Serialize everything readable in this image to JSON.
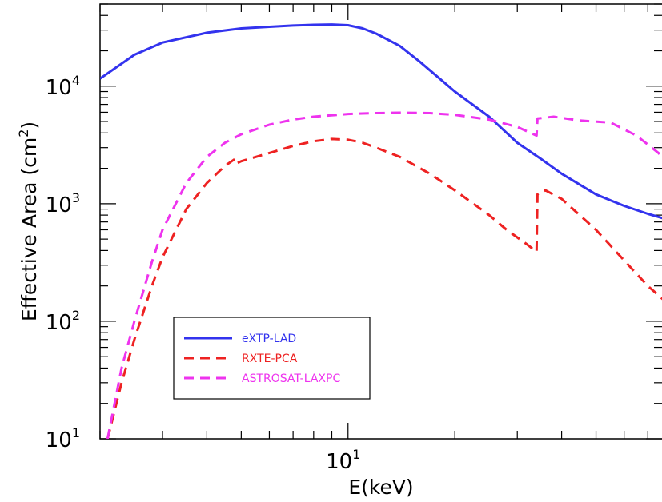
{
  "chart_data": {
    "type": "line",
    "title": "",
    "xlabel": "E(keV)",
    "ylabel_main": "Effective Area (cm",
    "ylabel_sup": "2",
    "ylabel_close": ")",
    "x_scale": "log",
    "y_scale": "log",
    "xlim": [
      2,
      80
    ],
    "ylim": [
      10,
      50000
    ],
    "x_ticks": [
      {
        "base": "10",
        "exp": "1",
        "value": 10
      }
    ],
    "y_ticks": [
      {
        "base": "10",
        "exp": "1",
        "value": 10
      },
      {
        "base": "10",
        "exp": "2",
        "value": 100
      },
      {
        "base": "10",
        "exp": "3",
        "value": 1000
      },
      {
        "base": "10",
        "exp": "4",
        "value": 10000
      }
    ],
    "grid": false,
    "legend_position": "lower-left",
    "series": [
      {
        "name": "eXTP-LAD",
        "color": "#3333ee",
        "style": "solid",
        "points": [
          [
            2,
            11600
          ],
          [
            2.5,
            18500
          ],
          [
            3,
            23500
          ],
          [
            4,
            28500
          ],
          [
            5,
            31000
          ],
          [
            6,
            32000
          ],
          [
            7,
            32800
          ],
          [
            8,
            33300
          ],
          [
            9,
            33500
          ],
          [
            10,
            33000
          ],
          [
            11,
            31000
          ],
          [
            12,
            28000
          ],
          [
            14,
            22000
          ],
          [
            16,
            16000
          ],
          [
            20,
            9000
          ],
          [
            25,
            5500
          ],
          [
            30,
            3300
          ],
          [
            35,
            2400
          ],
          [
            40,
            1800
          ],
          [
            50,
            1200
          ],
          [
            60,
            960
          ],
          [
            70,
            820
          ],
          [
            80,
            730
          ]
        ]
      },
      {
        "name": "RXTE-PCA",
        "color": "#ee2222",
        "style": "dashed",
        "points": [
          [
            2.1,
            10
          ],
          [
            2.3,
            30
          ],
          [
            2.5,
            70
          ],
          [
            2.8,
            200
          ],
          [
            3,
            350
          ],
          [
            3.5,
            900
          ],
          [
            4,
            1500
          ],
          [
            4.5,
            2100
          ],
          [
            4.8,
            2400
          ],
          [
            4.85,
            2200
          ],
          [
            5,
            2300
          ],
          [
            6,
            2700
          ],
          [
            7,
            3100
          ],
          [
            8,
            3400
          ],
          [
            9,
            3550
          ],
          [
            10,
            3500
          ],
          [
            11,
            3300
          ],
          [
            12,
            3000
          ],
          [
            14,
            2500
          ],
          [
            17,
            1800
          ],
          [
            20,
            1300
          ],
          [
            25,
            800
          ],
          [
            28,
            600
          ],
          [
            32,
            450
          ],
          [
            34,
            390
          ],
          [
            34.2,
            1200
          ],
          [
            36,
            1300
          ],
          [
            40,
            1100
          ],
          [
            50,
            600
          ],
          [
            60,
            330
          ],
          [
            70,
            200
          ],
          [
            80,
            140
          ]
        ]
      },
      {
        "name": "ASTROSAT-LAXPC",
        "color": "#ee33ee",
        "style": "dashed",
        "points": [
          [
            2.1,
            10
          ],
          [
            2.3,
            40
          ],
          [
            2.5,
            100
          ],
          [
            2.8,
            320
          ],
          [
            3,
            600
          ],
          [
            3.5,
            1500
          ],
          [
            4,
            2500
          ],
          [
            4.5,
            3300
          ],
          [
            5,
            3900
          ],
          [
            6,
            4700
          ],
          [
            7,
            5200
          ],
          [
            8,
            5500
          ],
          [
            10,
            5800
          ],
          [
            12,
            5900
          ],
          [
            14,
            5950
          ],
          [
            17,
            5900
          ],
          [
            20,
            5700
          ],
          [
            25,
            5200
          ],
          [
            30,
            4500
          ],
          [
            34,
            3800
          ],
          [
            34.2,
            5300
          ],
          [
            38,
            5500
          ],
          [
            45,
            5100
          ],
          [
            55,
            4900
          ],
          [
            65,
            3800
          ],
          [
            75,
            2700
          ],
          [
            80,
            2100
          ]
        ]
      }
    ]
  }
}
